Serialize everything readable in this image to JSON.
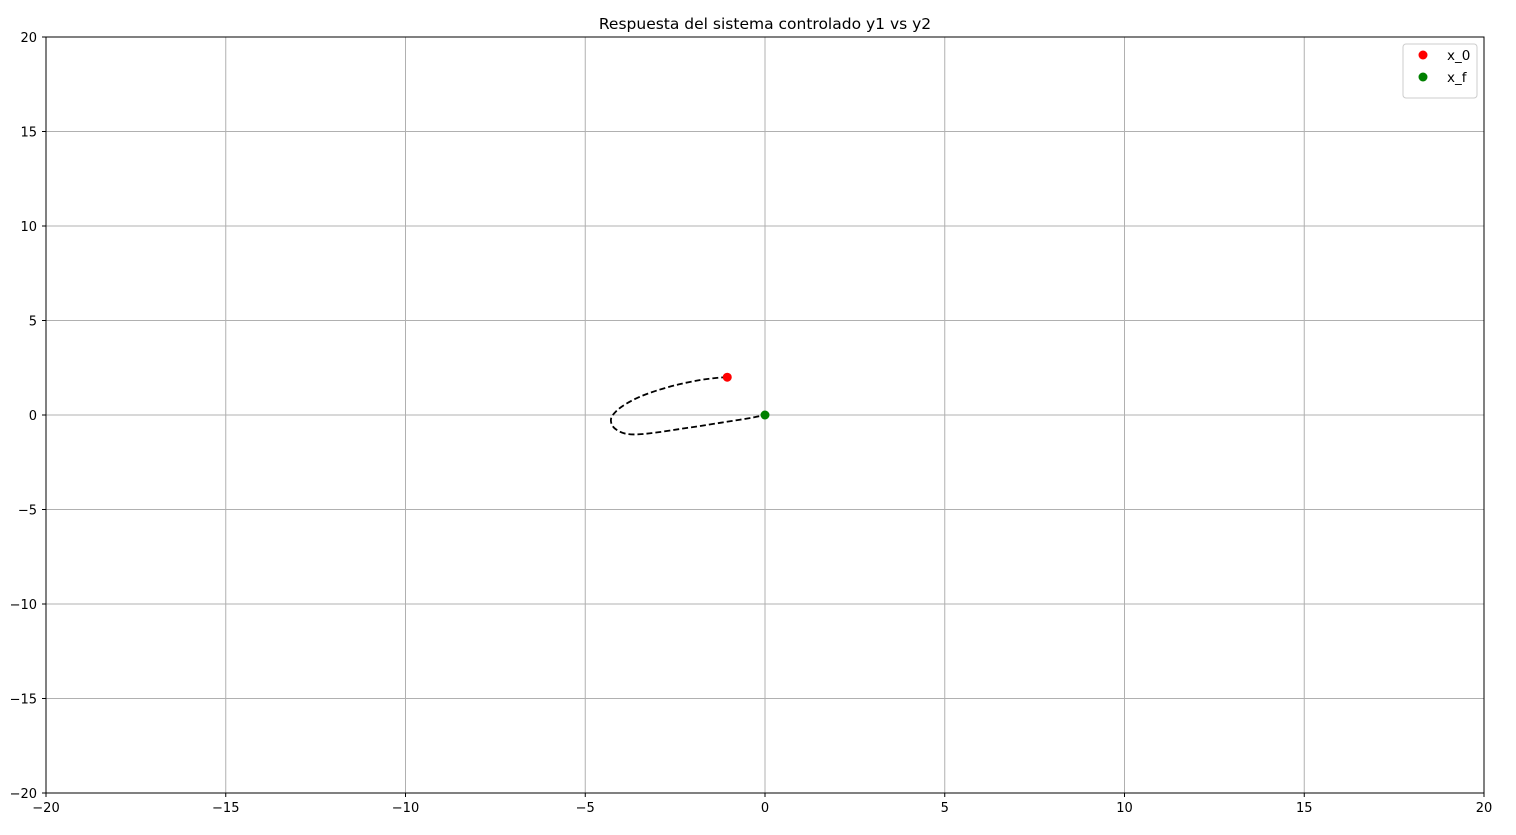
{
  "chart_data": {
    "type": "line",
    "title": "Respuesta del sistema controlado y1 vs y2",
    "xlabel": "",
    "ylabel": "",
    "xlim": [
      -20,
      20
    ],
    "ylim": [
      -20,
      20
    ],
    "xticks": [
      -20,
      -15,
      -10,
      -5,
      0,
      5,
      10,
      15,
      20
    ],
    "yticks": [
      -20,
      -15,
      -10,
      -5,
      0,
      5,
      10,
      15,
      20
    ],
    "xtick_labels": [
      "−20",
      "−15",
      "−10",
      "−5",
      "0",
      "5",
      "10",
      "15",
      "20"
    ],
    "ytick_labels": [
      "−20",
      "−15",
      "−10",
      "−5",
      "0",
      "5",
      "10",
      "15",
      "20"
    ],
    "grid": true,
    "legend_position": "top-right",
    "series": [
      {
        "style": "dashed",
        "color": "#000000",
        "x": [
          -1.05,
          -1.3,
          -1.8,
          -2.4,
          -3.0,
          -3.5,
          -3.9,
          -4.15,
          -4.28,
          -4.25,
          -4.1,
          -3.85,
          -3.5,
          -3.0,
          -2.4,
          -1.8,
          -1.2,
          -0.7,
          -0.3,
          0.0
        ],
        "y": [
          2.0,
          1.97,
          1.85,
          1.62,
          1.3,
          0.95,
          0.55,
          0.18,
          -0.18,
          -0.55,
          -0.82,
          -1.0,
          -1.02,
          -0.92,
          -0.75,
          -0.58,
          -0.4,
          -0.25,
          -0.12,
          0.0
        ]
      },
      {
        "name": "x_0",
        "marker": "circle",
        "color": "#ff0000",
        "x": [
          -1.05
        ],
        "y": [
          2.0
        ]
      },
      {
        "name": "x_f",
        "marker": "circle",
        "color": "#008000",
        "x": [
          0.0
        ],
        "y": [
          0.0
        ]
      }
    ]
  }
}
